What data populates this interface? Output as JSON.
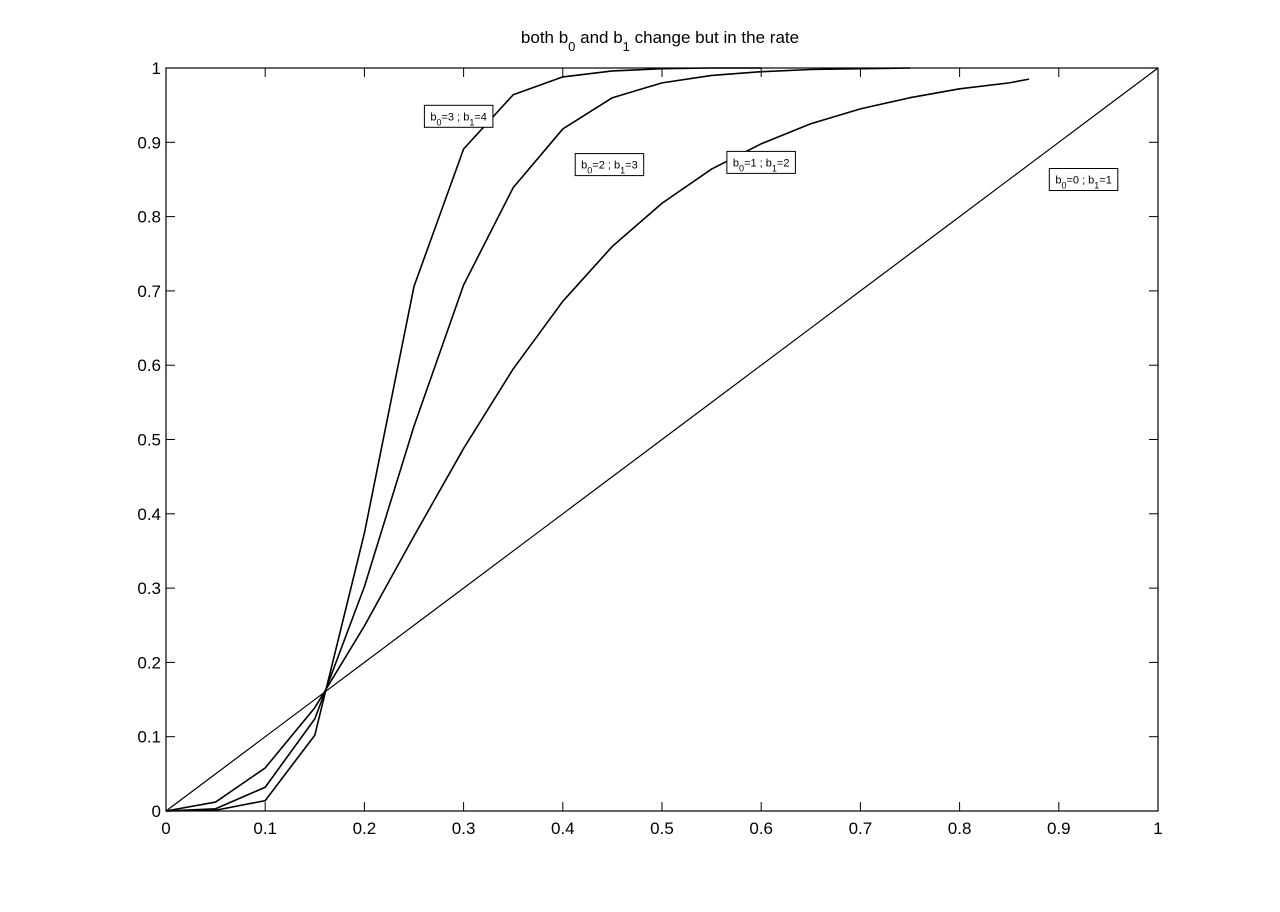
{
  "chart_data": {
    "type": "line",
    "title": {
      "parts": [
        {
          "text": "both b"
        },
        {
          "text": "0",
          "sub": true
        },
        {
          "text": " and b"
        },
        {
          "text": "1",
          "sub": true
        },
        {
          "text": " change but in the rate"
        }
      ]
    },
    "xlabel": "",
    "ylabel": "",
    "xlim": [
      0,
      1
    ],
    "ylim": [
      0,
      1
    ],
    "grid": false,
    "line_color": "#000000",
    "x_ticks": [
      0,
      0.1,
      0.2,
      0.3,
      0.4,
      0.5,
      0.6,
      0.7,
      0.8,
      0.9,
      1
    ],
    "x_tick_labels": [
      "0",
      "0.1",
      "0.2",
      "0.3",
      "0.4",
      "0.5",
      "0.6",
      "0.7",
      "0.8",
      "0.9",
      "1"
    ],
    "y_ticks": [
      0,
      0.1,
      0.2,
      0.3,
      0.4,
      0.5,
      0.6,
      0.7,
      0.8,
      0.9,
      1
    ],
    "y_tick_labels": [
      "0",
      "0.1",
      "0.2",
      "0.3",
      "0.4",
      "0.5",
      "0.6",
      "0.7",
      "0.8",
      "0.9",
      "1"
    ],
    "series": [
      {
        "x": [
          0,
          0.05,
          0.1,
          0.15,
          0.2,
          0.25,
          0.3,
          0.35,
          0.4,
          0.45,
          0.5,
          0.55,
          0.6,
          0.65,
          0.7,
          0.75,
          0.8,
          0.85,
          0.9,
          0.95,
          1
        ],
        "y": [
          0,
          0.05,
          0.1,
          0.15,
          0.2,
          0.25,
          0.3,
          0.35,
          0.4,
          0.45,
          0.5,
          0.55,
          0.6,
          0.65,
          0.7,
          0.75,
          0.8,
          0.85,
          0.9,
          0.95,
          1
        ]
      },
      {
        "x": [
          0,
          0.05,
          0.1,
          0.15,
          0.2,
          0.25,
          0.3,
          0.35,
          0.4,
          0.45,
          0.5,
          0.55,
          0.6,
          0.65,
          0.7,
          0.75,
          0.8,
          0.85,
          0.87
        ],
        "y": [
          0,
          0.012,
          0.058,
          0.139,
          0.249,
          0.37,
          0.488,
          0.595,
          0.686,
          0.76,
          0.818,
          0.864,
          0.898,
          0.925,
          0.945,
          0.96,
          0.972,
          0.98,
          0.985
        ]
      },
      {
        "x": [
          0,
          0.05,
          0.1,
          0.15,
          0.2,
          0.25,
          0.3,
          0.35,
          0.4,
          0.45,
          0.5,
          0.55,
          0.6,
          0.65,
          0.7,
          0.75
        ],
        "y": [
          0,
          0.003,
          0.032,
          0.124,
          0.302,
          0.518,
          0.708,
          0.839,
          0.918,
          0.96,
          0.98,
          0.99,
          0.995,
          0.998,
          0.999,
          1
        ]
      },
      {
        "x": [
          0,
          0.05,
          0.1,
          0.15,
          0.2,
          0.25,
          0.3,
          0.35,
          0.4,
          0.45,
          0.5,
          0.55,
          0.6
        ],
        "y": [
          0,
          0.001,
          0.014,
          0.102,
          0.374,
          0.706,
          0.891,
          0.964,
          0.988,
          0.996,
          0.999,
          1,
          1
        ]
      }
    ],
    "annotations": [
      {
        "x": 0.295,
        "y": 0.935,
        "parts": [
          {
            "text": "b"
          },
          {
            "text": "0",
            "sub": true
          },
          {
            "text": "=3 ; b"
          },
          {
            "text": "1",
            "sub": true
          },
          {
            "text": "=4"
          }
        ]
      },
      {
        "x": 0.447,
        "y": 0.87,
        "parts": [
          {
            "text": "b"
          },
          {
            "text": "0",
            "sub": true
          },
          {
            "text": "=2 ; b"
          },
          {
            "text": "1",
            "sub": true
          },
          {
            "text": "=3"
          }
        ]
      },
      {
        "x": 0.6,
        "y": 0.873,
        "parts": [
          {
            "text": "b"
          },
          {
            "text": "0",
            "sub": true
          },
          {
            "text": "=1 ; b"
          },
          {
            "text": "1",
            "sub": true
          },
          {
            "text": "=2"
          }
        ]
      },
      {
        "x": 0.925,
        "y": 0.85,
        "parts": [
          {
            "text": "b"
          },
          {
            "text": "0",
            "sub": true
          },
          {
            "text": "=0 ; b"
          },
          {
            "text": "1",
            "sub": true
          },
          {
            "text": "=1"
          }
        ]
      }
    ]
  }
}
